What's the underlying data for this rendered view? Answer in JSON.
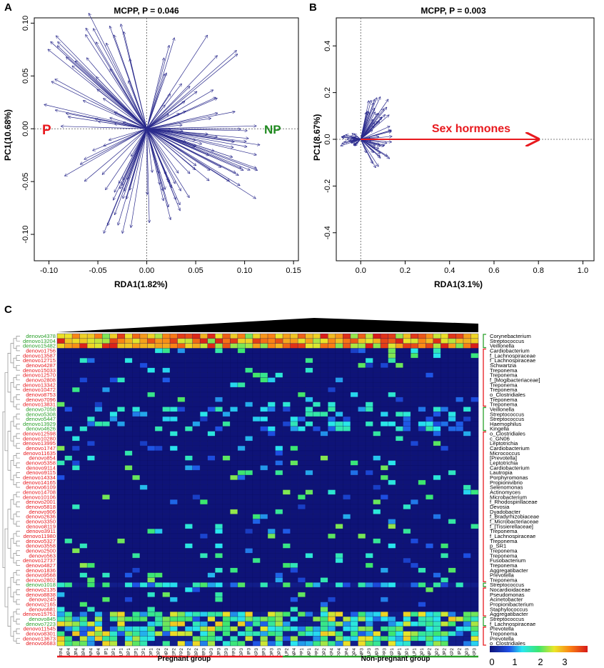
{
  "panel_a": {
    "label": "A",
    "title": "MCPP, P =  0.046",
    "xlabel": "RDA1(1.82%)",
    "ylabel": "PC1(10.68%)",
    "xticks": [
      "-0.10",
      "-0.05",
      "0.00",
      "0.05",
      "0.10",
      "0.15"
    ],
    "yticks": [
      "0.10",
      "0.05",
      "0.00",
      "-0.05",
      "-0.10"
    ],
    "label_p": "P",
    "label_np": "NP",
    "color_p": "#e8191e",
    "color_np": "#1f8a1f",
    "arrow_color": "#2a2a8c"
  },
  "panel_b": {
    "label": "B",
    "title": "MCPP, P =  0.003",
    "xlabel": "RDA1(3.1%)",
    "ylabel": "PC1(8.67%)",
    "xticks": [
      "0.0",
      "0.2",
      "0.4",
      "0.6",
      "0.8",
      "1.0"
    ],
    "yticks": [
      "0.4",
      "0.2",
      "0.0",
      "-0.2",
      "-0.4"
    ],
    "factor_label": "Sex hormones",
    "factor_color": "#e8191e"
  },
  "panel_c": {
    "label": "C",
    "otu_ids": [
      "denovo4378",
      "denovo13204",
      "denovo15482",
      "denovo1756",
      "denovo13587",
      "denovo12715",
      "denovo4287",
      "denovo15033",
      "denovo12570",
      "denovo2808",
      "denovo13342",
      "denovo10472",
      "denovo8753",
      "denovo7096",
      "denovo13831",
      "denovo7058",
      "denovo5308",
      "denovo5447",
      "denovo13929",
      "denovo4626",
      "denovo12598",
      "denovo10280",
      "denovo13995",
      "denovo1747",
      "denovo11635",
      "denovo854",
      "denovo5358",
      "denovo9114",
      "denovo9115",
      "denovo14334",
      "denovo14165",
      "denovo6109",
      "denovo14708",
      "denovo10106",
      "denovo2001",
      "denovo5818",
      "denovo906",
      "denovo2636",
      "denovo3350",
      "denovo8119",
      "denovo3911",
      "denovo11980",
      "denovo5327",
      "denovo3558",
      "denovo2500",
      "denovo563",
      "denovo12737",
      "denovo4827",
      "denovo1836",
      "denovo9568",
      "denovo2802",
      "denovo1018",
      "denovo2135",
      "denovo8838",
      "denovo245",
      "denovo2165",
      "denovo681",
      "denovo15751",
      "denovo845",
      "denovo7223",
      "denovo11545",
      "denovo8301",
      "denovo13673",
      "denovo6683"
    ],
    "taxa": [
      "Corynebacterium",
      "Streptococcus",
      "Veillonella",
      "Cardiobacterium",
      "f_Lachnospiraceae",
      "f_Lachnospiraceae",
      "Schwartzia",
      "Treponema",
      "Treponema",
      "f_[Mogibacteriaceae]",
      "Treponema",
      "Treponema",
      "o_Clostridiales",
      "Treponema",
      "Treponema",
      "Veillonella",
      "Streptococcus",
      "Streptococcus",
      "Haemophilus",
      "Kingella",
      "o_Clostridiales",
      "c_GN06",
      "Leptotrichia",
      "Cardiobacterium",
      "Micrococcus",
      "[Prevotella]",
      "Leptotrichia",
      "Cardiobacterium",
      "Lautropia",
      "Porphyromonas",
      "Propionivibrio",
      "Selenomonas",
      "Actinomyces",
      "Microbacterium",
      "f_Rhodospirillaceae",
      "Devosia",
      "Dyadobacter",
      "f_Bradyrhizobiaceae",
      "f_Microbacteriaceae",
      "f_[Tissierellaceae]",
      "Treponema",
      "f_Lachnospiraceae",
      "Treponema",
      "p_SR1",
      "Treponema",
      "Treponema",
      "Fusobacterium",
      "Treponema",
      "Aggregatibacter",
      "Prevotella",
      "Treponema",
      "Streptococcus",
      "Nocardioidaceae",
      "Pseudomonas",
      "Acinetobacter",
      "Propionibacterium",
      "Staphylococcus",
      "Aggregatibacter",
      "Streptococcus",
      "f_Lachnospiraceae",
      "Prevotella",
      "Treponema",
      "Prevotella",
      "o_Clostridiales"
    ],
    "otu_group": [
      "g",
      "g",
      "g",
      "r",
      "r",
      "r",
      "r",
      "r",
      "r",
      "r",
      "r",
      "r",
      "r",
      "r",
      "r",
      "g",
      "g",
      "g",
      "g",
      "g",
      "r",
      "r",
      "r",
      "r",
      "r",
      "r",
      "r",
      "r",
      "r",
      "r",
      "r",
      "r",
      "r",
      "r",
      "r",
      "r",
      "r",
      "r",
      "r",
      "r",
      "r",
      "r",
      "r",
      "r",
      "r",
      "r",
      "r",
      "r",
      "r",
      "r",
      "r",
      "g",
      "r",
      "r",
      "r",
      "r",
      "r",
      "r",
      "g",
      "g",
      "r",
      "r",
      "r",
      "r"
    ],
    "samples_pregnant": [
      "FP4",
      "MP4",
      "JP4",
      "BP4",
      "AP4",
      "HP4",
      "IP1",
      "GP1",
      "LP1",
      "BP1",
      "EP1",
      "CP1",
      "DP1",
      "DP2",
      "HP2",
      "EP2",
      "FP2",
      "RP2",
      "BP2",
      "RP3",
      "AP3",
      "JP3",
      "EP3",
      "FP3",
      "GP3",
      "IP3",
      "KP3",
      "BP3",
      "OP3",
      "DP3"
    ],
    "samples_nonpregnant": [
      "LP2",
      "NP4",
      "PP1",
      "MP1",
      "PP2",
      "OP2",
      "KP4",
      "PP4",
      "OP4",
      "QP4",
      "NP3",
      "LP3",
      "MP3",
      "PP3",
      "KP1",
      "NP1",
      "OP1",
      "LP1",
      "QP1",
      "NP2",
      "QP2",
      "JP2",
      "KP2",
      "IP2",
      "QP3",
      "KP3"
    ],
    "group_pregnant": "Pregnant group",
    "group_nonpregnant": "Non-pregnant group",
    "color_pregnant": "#e8191e",
    "color_nonpregnant": "#2aa02a",
    "legend_ticks": [
      "0",
      "1",
      "2",
      "3"
    ]
  }
}
